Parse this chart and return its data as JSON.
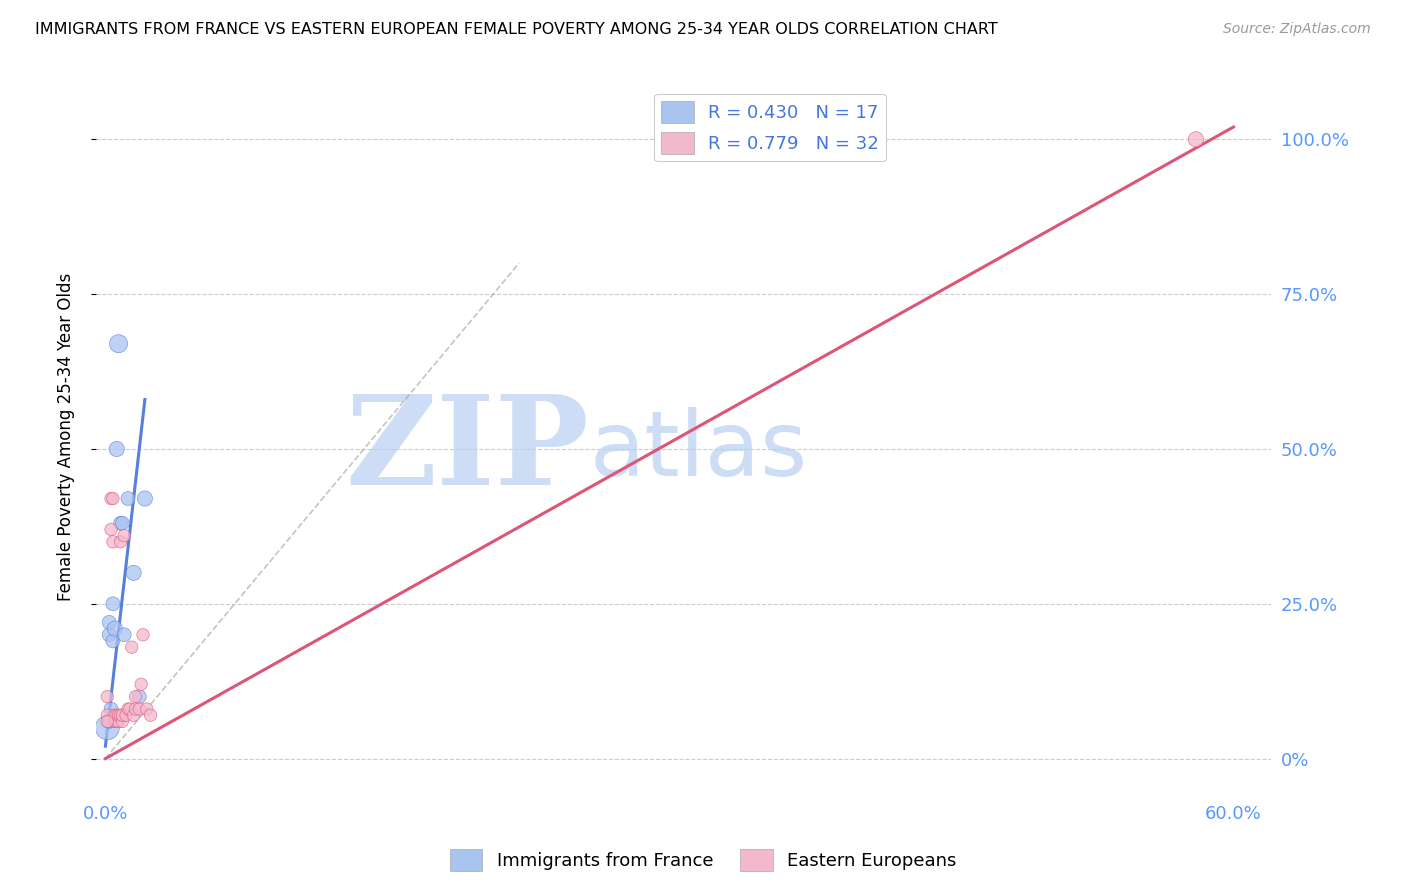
{
  "title": "IMMIGRANTS FROM FRANCE VS EASTERN EUROPEAN FEMALE POVERTY AMONG 25-34 YEAR OLDS CORRELATION CHART",
  "source": "Source: ZipAtlas.com",
  "ylabel": "Female Poverty Among 25-34 Year Olds",
  "y_ticks_right": [
    0.0,
    0.25,
    0.5,
    0.75,
    1.0
  ],
  "y_tick_labels_right": [
    "0%",
    "25.0%",
    "50.0%",
    "75.0%",
    "100.0%"
  ],
  "watermark_zip": "ZIP",
  "watermark_atlas": "atlas",
  "blue_scatter_x": [
    0.001,
    0.002,
    0.002,
    0.003,
    0.004,
    0.004,
    0.005,
    0.006,
    0.007,
    0.008,
    0.009,
    0.012,
    0.015,
    0.018,
    0.021,
    0.002,
    0.01
  ],
  "blue_scatter_y": [
    0.05,
    0.2,
    0.22,
    0.08,
    0.19,
    0.25,
    0.21,
    0.5,
    0.67,
    0.38,
    0.38,
    0.42,
    0.3,
    0.1,
    0.42,
    0.06,
    0.2
  ],
  "blue_scatter_sizes": [
    300,
    100,
    100,
    100,
    100,
    100,
    120,
    120,
    170,
    100,
    100,
    100,
    120,
    100,
    120,
    100,
    100
  ],
  "pink_scatter_x": [
    0.001,
    0.001,
    0.002,
    0.003,
    0.003,
    0.004,
    0.004,
    0.005,
    0.005,
    0.006,
    0.006,
    0.007,
    0.007,
    0.008,
    0.008,
    0.009,
    0.009,
    0.01,
    0.011,
    0.012,
    0.013,
    0.014,
    0.015,
    0.016,
    0.016,
    0.018,
    0.019,
    0.02,
    0.022,
    0.024,
    0.58,
    0.001
  ],
  "pink_scatter_y": [
    0.07,
    0.1,
    0.06,
    0.37,
    0.42,
    0.42,
    0.35,
    0.06,
    0.07,
    0.06,
    0.07,
    0.06,
    0.07,
    0.35,
    0.07,
    0.06,
    0.07,
    0.36,
    0.07,
    0.08,
    0.08,
    0.18,
    0.07,
    0.08,
    0.1,
    0.08,
    0.12,
    0.2,
    0.08,
    0.07,
    1.0,
    0.06
  ],
  "pink_scatter_sizes": [
    80,
    80,
    80,
    80,
    80,
    80,
    80,
    80,
    80,
    80,
    80,
    80,
    80,
    80,
    80,
    80,
    80,
    80,
    80,
    80,
    80,
    80,
    80,
    80,
    80,
    80,
    80,
    80,
    80,
    80,
    120,
    80
  ],
  "blue_line_x": [
    0.0,
    0.021
  ],
  "blue_line_y": [
    0.02,
    0.58
  ],
  "pink_line_x": [
    0.0,
    0.6
  ],
  "pink_line_y": [
    0.0,
    1.02
  ],
  "dash_line_x": [
    0.0,
    0.22
  ],
  "dash_line_y": [
    0.0,
    0.8
  ],
  "blue_color": "#5580dd",
  "pink_color": "#dd5577",
  "blue_fill": "#aac4f0",
  "pink_fill": "#f4b8cc",
  "background": "#ffffff",
  "grid_color": "#cccccc",
  "watermark_color": "#ccddf5",
  "xlim": [
    -0.005,
    0.62
  ],
  "ylim": [
    -0.06,
    1.1
  ],
  "x_tick_positions": [
    0.0,
    0.1,
    0.2,
    0.3,
    0.4,
    0.5,
    0.6
  ],
  "x_tick_labels": [
    "0.0%",
    "",
    "",
    "",
    "",
    "",
    "60.0%"
  ]
}
